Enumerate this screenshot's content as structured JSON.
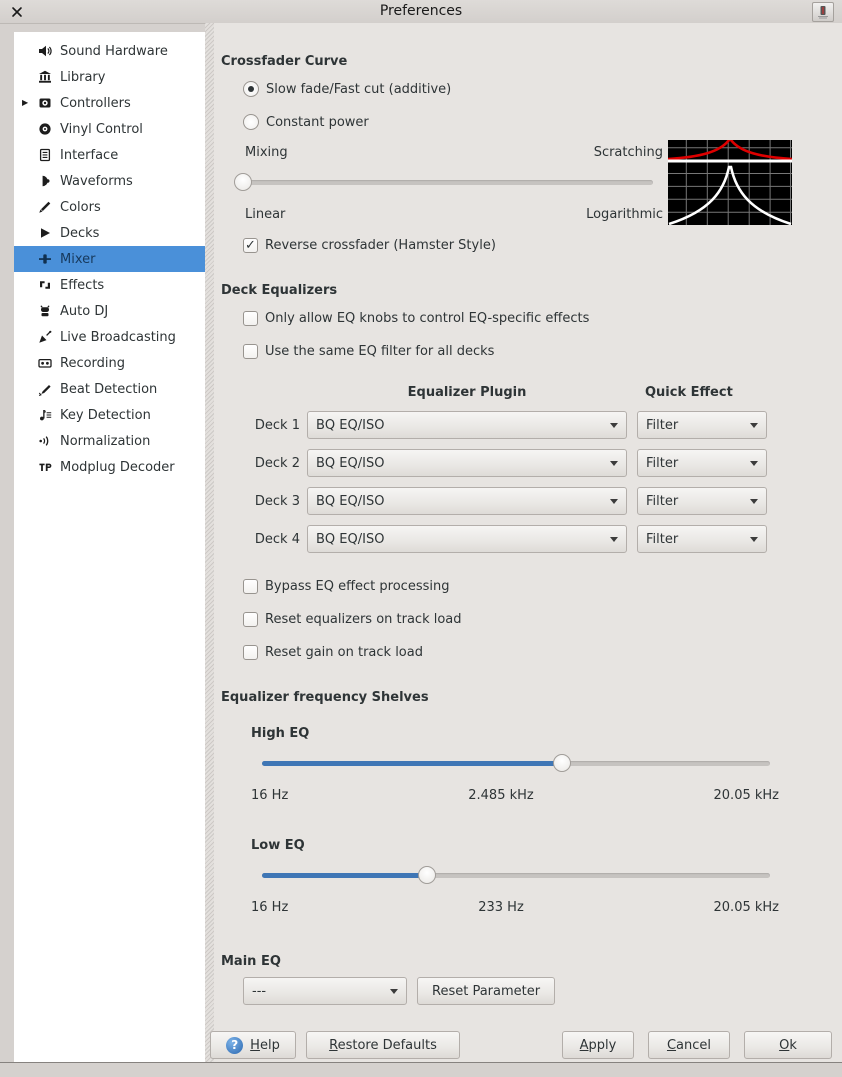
{
  "window": {
    "title": "Preferences"
  },
  "sidebar": {
    "items": [
      {
        "label": "Sound Hardware",
        "icon": "speaker-icon"
      },
      {
        "label": "Library",
        "icon": "library-icon"
      },
      {
        "label": "Controllers",
        "icon": "controller-icon",
        "expandable": true
      },
      {
        "label": "Vinyl Control",
        "icon": "vinyl-icon"
      },
      {
        "label": "Interface",
        "icon": "interface-icon"
      },
      {
        "label": "Waveforms",
        "icon": "waveform-icon"
      },
      {
        "label": "Colors",
        "icon": "colors-icon"
      },
      {
        "label": "Decks",
        "icon": "decks-icon"
      },
      {
        "label": "Mixer",
        "icon": "mixer-icon",
        "selected": true
      },
      {
        "label": "Effects",
        "icon": "effects-icon"
      },
      {
        "label": "Auto DJ",
        "icon": "autodj-icon"
      },
      {
        "label": "Live Broadcasting",
        "icon": "broadcast-icon"
      },
      {
        "label": "Recording",
        "icon": "recording-icon"
      },
      {
        "label": "Beat Detection",
        "icon": "beat-detection-icon"
      },
      {
        "label": "Key Detection",
        "icon": "key-detection-icon"
      },
      {
        "label": "Normalization",
        "icon": "normalization-icon"
      },
      {
        "label": "Modplug Decoder",
        "icon": "modplug-icon"
      }
    ]
  },
  "crossfader": {
    "heading": "Crossfader Curve",
    "options": [
      {
        "label": "Slow fade/Fast cut (additive)",
        "selected": true
      },
      {
        "label": "Constant power",
        "selected": false
      }
    ],
    "slider_left_label": "Mixing",
    "slider_right_label": "Scratching",
    "slider_bottom_left": "Linear",
    "slider_bottom_right": "Logarithmic",
    "slider_percent": 0,
    "reverse": {
      "label": "Reverse crossfader (Hamster Style)",
      "checked": true
    }
  },
  "deck_eq": {
    "heading": "Deck Equalizers",
    "checkboxes": [
      {
        "label": "Only allow EQ knobs to control EQ-specific effects",
        "checked": false
      },
      {
        "label": "Use the same EQ filter for all decks",
        "checked": false
      }
    ],
    "col_plugin": "Equalizer Plugin",
    "col_quick": "Quick Effect",
    "decks": [
      {
        "label": "Deck 1",
        "plugin": "BQ EQ/ISO",
        "quick": "Filter"
      },
      {
        "label": "Deck 2",
        "plugin": "BQ EQ/ISO",
        "quick": "Filter"
      },
      {
        "label": "Deck 3",
        "plugin": "BQ EQ/ISO",
        "quick": "Filter"
      },
      {
        "label": "Deck 4",
        "plugin": "BQ EQ/ISO",
        "quick": "Filter"
      }
    ],
    "options": [
      {
        "label": "Bypass EQ effect processing",
        "checked": false
      },
      {
        "label": "Reset equalizers on track load",
        "checked": false
      },
      {
        "label": "Reset gain on track load",
        "checked": false
      }
    ]
  },
  "shelves": {
    "heading": "Equalizer frequency Shelves",
    "high": {
      "label": "High EQ",
      "percent": 59,
      "min": "16 Hz",
      "value": "2.485 kHz",
      "max": "20.05 kHz"
    },
    "low": {
      "label": "Low EQ",
      "percent": 32.5,
      "min": "16 Hz",
      "value": "233 Hz",
      "max": "20.05 kHz"
    }
  },
  "main_eq": {
    "heading": "Main EQ",
    "dropdown_value": "---",
    "reset_button": "Reset Parameter"
  },
  "footer": {
    "left_buttons": [
      {
        "label": "Help",
        "icon": "help-icon",
        "mnemonic": true
      },
      {
        "label": "Restore Defaults",
        "mnemonic": true
      }
    ],
    "right_buttons": [
      {
        "label": "Apply",
        "mnemonic": true
      },
      {
        "label": "Cancel",
        "mnemonic": true
      },
      {
        "label": "Ok",
        "mnemonic": true
      }
    ]
  },
  "colors": {
    "selection_blue": "#4a90d9",
    "slider_blue": "#3f76b5",
    "graph_red": "#dd0000",
    "graph_bg": "#000000"
  }
}
